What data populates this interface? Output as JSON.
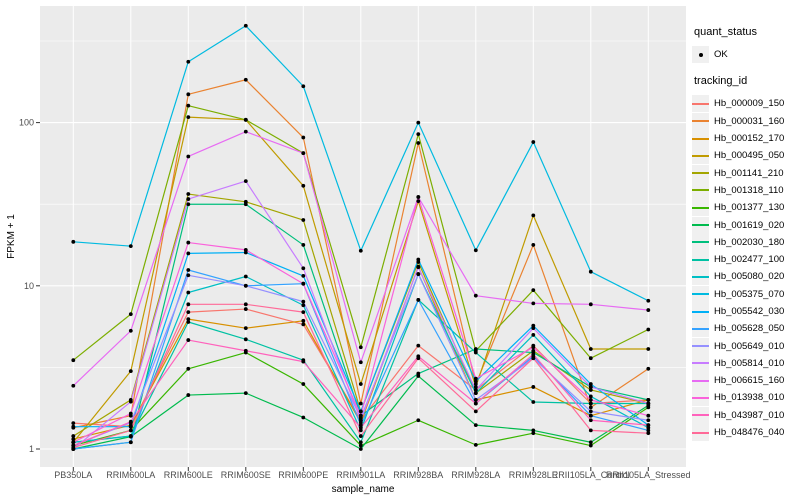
{
  "axes": {
    "x_title": "sample_name",
    "y_title": "FPKM + 1",
    "y_scale": "log10",
    "y_tick_labels": [
      "1",
      "10",
      "100"
    ],
    "y_tick_values": [
      1,
      10,
      100
    ],
    "y_minor_values": [
      3.1623,
      31.623,
      316.23
    ],
    "ylim": [
      1,
      420
    ],
    "grid": "on"
  },
  "legend": {
    "quant_status": {
      "title": "quant_status",
      "items": [
        {
          "label": "OK",
          "marker": "point"
        }
      ]
    },
    "tracking_id": {
      "title": "tracking_id"
    }
  },
  "style": {
    "panel_bg": "#EBEBEB",
    "grid_color": "#FFFFFF",
    "tick_label_color": "#4D4D4D",
    "axis_title_color": "#000000",
    "point_color": "#000000",
    "legend_key_bg": "#F0F0F0"
  },
  "chart_data": {
    "type": "line",
    "title": "",
    "xlabel": "sample_name",
    "ylabel": "FPKM + 1",
    "legend_position": "right",
    "x_categories": [
      "PB350LA",
      "RRIM600LA",
      "RRIM600LE",
      "RRIM600SE",
      "RRIM600PE",
      "RRIM901LA",
      "RRIM928BA",
      "RRIM928LA",
      "RRIM928LE",
      "RRII105LA_Control",
      "RRII105LA_Stressed"
    ],
    "series": [
      {
        "name": "Hb_000009_150",
        "color": "#F8766D",
        "values": [
          1.44,
          1.37,
          6.9,
          7.2,
          5.8,
          1.5,
          4.3,
          2.3,
          4.3,
          1.9,
          2.0
        ]
      },
      {
        "name": "Hb_000031_160",
        "color": "#EA8331",
        "values": [
          1.35,
          1.6,
          149,
          183,
          81,
          1.9,
          75,
          2.5,
          17.8,
          1.8,
          3.1
        ]
      },
      {
        "name": "Hb_000152_170",
        "color": "#D89000",
        "values": [
          1.15,
          1.4,
          6.25,
          5.5,
          6.1,
          1.45,
          13.1,
          2.0,
          2.4,
          1.6,
          2.0
        ]
      },
      {
        "name": "Hb_000495_050",
        "color": "#C09B00",
        "values": [
          1.1,
          3.0,
          108,
          104,
          41,
          2.5,
          33,
          2.4,
          27,
          4.1,
          4.1
        ]
      },
      {
        "name": "Hb_001141_210",
        "color": "#A3A500",
        "values": [
          1.2,
          2.0,
          36.5,
          32.7,
          25.3,
          1.7,
          14,
          2.2,
          4.0,
          2.3,
          1.9
        ]
      },
      {
        "name": "Hb_001318_110",
        "color": "#7CAE00",
        "values": [
          3.5,
          6.7,
          127,
          104,
          65,
          4.2,
          85,
          4.0,
          9.4,
          3.6,
          5.4
        ]
      },
      {
        "name": "Hb_001377_130",
        "color": "#39B600",
        "values": [
          1.05,
          1.3,
          3.1,
          3.9,
          2.5,
          1.05,
          1.5,
          1.06,
          1.25,
          1.05,
          1.8
        ]
      },
      {
        "name": "Hb_001619_020",
        "color": "#00BB4E",
        "values": [
          1.0,
          1.19,
          2.14,
          2.2,
          1.56,
          1.0,
          2.8,
          1.4,
          1.3,
          1.1,
          1.85
        ]
      },
      {
        "name": "Hb_002030_180",
        "color": "#00BF7D",
        "values": [
          1.0,
          1.1,
          31.6,
          31.6,
          17.8,
          1.6,
          2.9,
          4.1,
          3.9,
          2.4,
          2.0
        ]
      },
      {
        "name": "Hb_002477_100",
        "color": "#00C1A3",
        "values": [
          1.1,
          1.2,
          6.0,
          4.7,
          3.5,
          1.1,
          8.2,
          3.9,
          1.94,
          1.9,
          1.9
        ]
      },
      {
        "name": "Hb_005080_020",
        "color": "#00BFC4",
        "values": [
          1.1,
          1.2,
          9.1,
          11.4,
          7.6,
          1.3,
          11.8,
          2.2,
          5.0,
          2.1,
          1.35
        ]
      },
      {
        "name": "Hb_005375_070",
        "color": "#00BAE0",
        "values": [
          18.6,
          17.5,
          236,
          392,
          167,
          16.4,
          100,
          16.5,
          76,
          12.2,
          8.1
        ]
      },
      {
        "name": "Hb_005542_030",
        "color": "#00B0F6",
        "values": [
          1.37,
          1.37,
          15.8,
          16.0,
          11.5,
          1.7,
          14.5,
          2.6,
          5.7,
          2.5,
          1.4
        ]
      },
      {
        "name": "Hb_005628_050",
        "color": "#35A2FF",
        "values": [
          1.0,
          1.1,
          12.5,
          10.0,
          10.3,
          1.4,
          8.2,
          1.9,
          3.7,
          1.6,
          1.3
        ]
      },
      {
        "name": "Hb_005649_010",
        "color": "#9590FF",
        "values": [
          1.05,
          1.45,
          11.6,
          10.0,
          8.0,
          1.55,
          11.8,
          2.0,
          3.6,
          1.7,
          1.5
        ]
      },
      {
        "name": "Hb_005814_010",
        "color": "#C77CFF",
        "values": [
          1.0,
          1.95,
          34,
          43.8,
          12.8,
          1.5,
          13,
          2.3,
          5.5,
          2.4,
          1.9
        ]
      },
      {
        "name": "Hb_006615_160",
        "color": "#E76BF3",
        "values": [
          2.44,
          5.3,
          62,
          88,
          65,
          3.4,
          35,
          8.7,
          7.8,
          7.7,
          7.1
        ]
      },
      {
        "name": "Hb_013938_010",
        "color": "#FA62DB",
        "values": [
          1.1,
          1.65,
          18.4,
          16.6,
          10.3,
          1.6,
          35,
          2.7,
          4.2,
          2.0,
          1.6
        ]
      },
      {
        "name": "Hb_043987_010",
        "color": "#FF62BC",
        "values": [
          1.05,
          1.47,
          4.65,
          4.0,
          3.43,
          1.35,
          3.7,
          1.9,
          3.8,
          1.5,
          1.4
        ]
      },
      {
        "name": "Hb_048476_040",
        "color": "#FF6A98",
        "values": [
          1.02,
          1.3,
          7.7,
          7.7,
          6.9,
          1.2,
          3.6,
          1.7,
          3.6,
          1.3,
          1.25
        ]
      }
    ]
  }
}
